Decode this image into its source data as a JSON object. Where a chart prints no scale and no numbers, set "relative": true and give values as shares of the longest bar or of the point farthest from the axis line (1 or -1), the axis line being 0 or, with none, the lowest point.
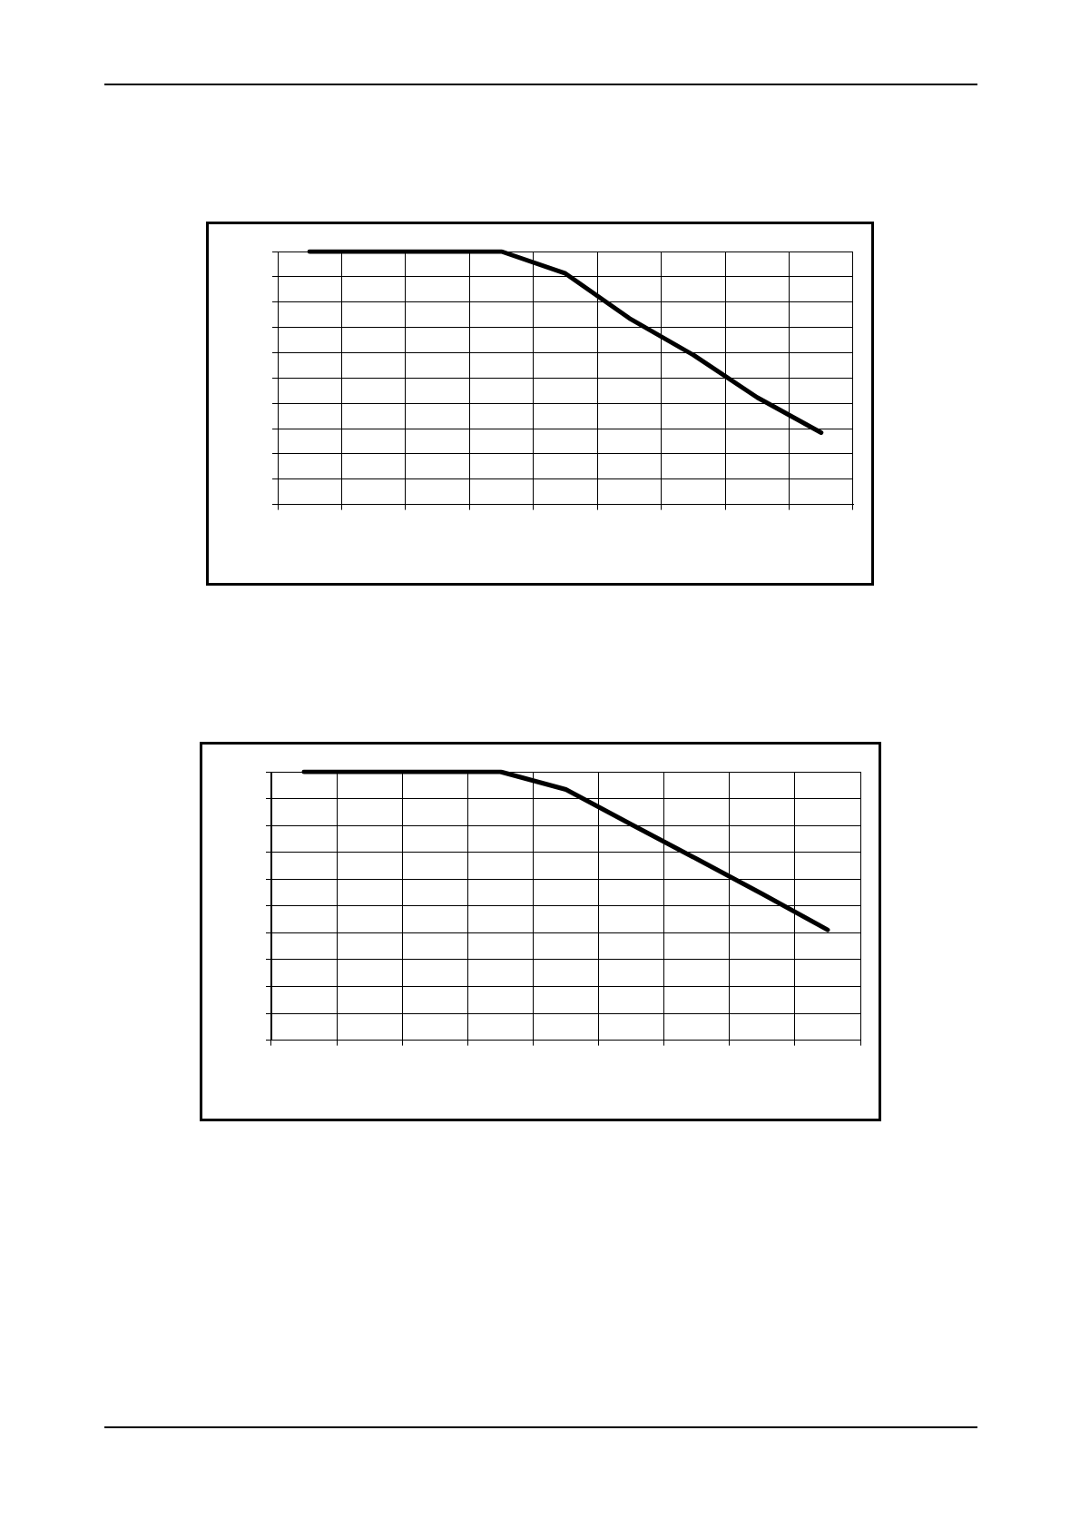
{
  "chart_data": [
    {
      "type": "line",
      "relative": true,
      "categories": [
        null,
        null,
        null,
        null,
        null,
        null,
        null,
        null,
        null
      ],
      "grid": true,
      "legend": false,
      "marker": "none",
      "series": [
        {
          "color": "#000000",
          "values": [
            1,
            1,
            1,
            1,
            0.913,
            0.736,
            0.591,
            0.423,
            0.284
          ]
        }
      ]
    },
    {
      "type": "line",
      "relative": true,
      "categories": [
        null,
        null,
        null,
        null,
        null,
        null,
        null,
        null,
        null
      ],
      "grid": true,
      "legend": false,
      "marker": "none",
      "series": [
        {
          "color": "#000000",
          "values": [
            1,
            1,
            1,
            1,
            0.934,
            0.804,
            0.675,
            0.545,
            0.411
          ]
        }
      ]
    }
  ]
}
